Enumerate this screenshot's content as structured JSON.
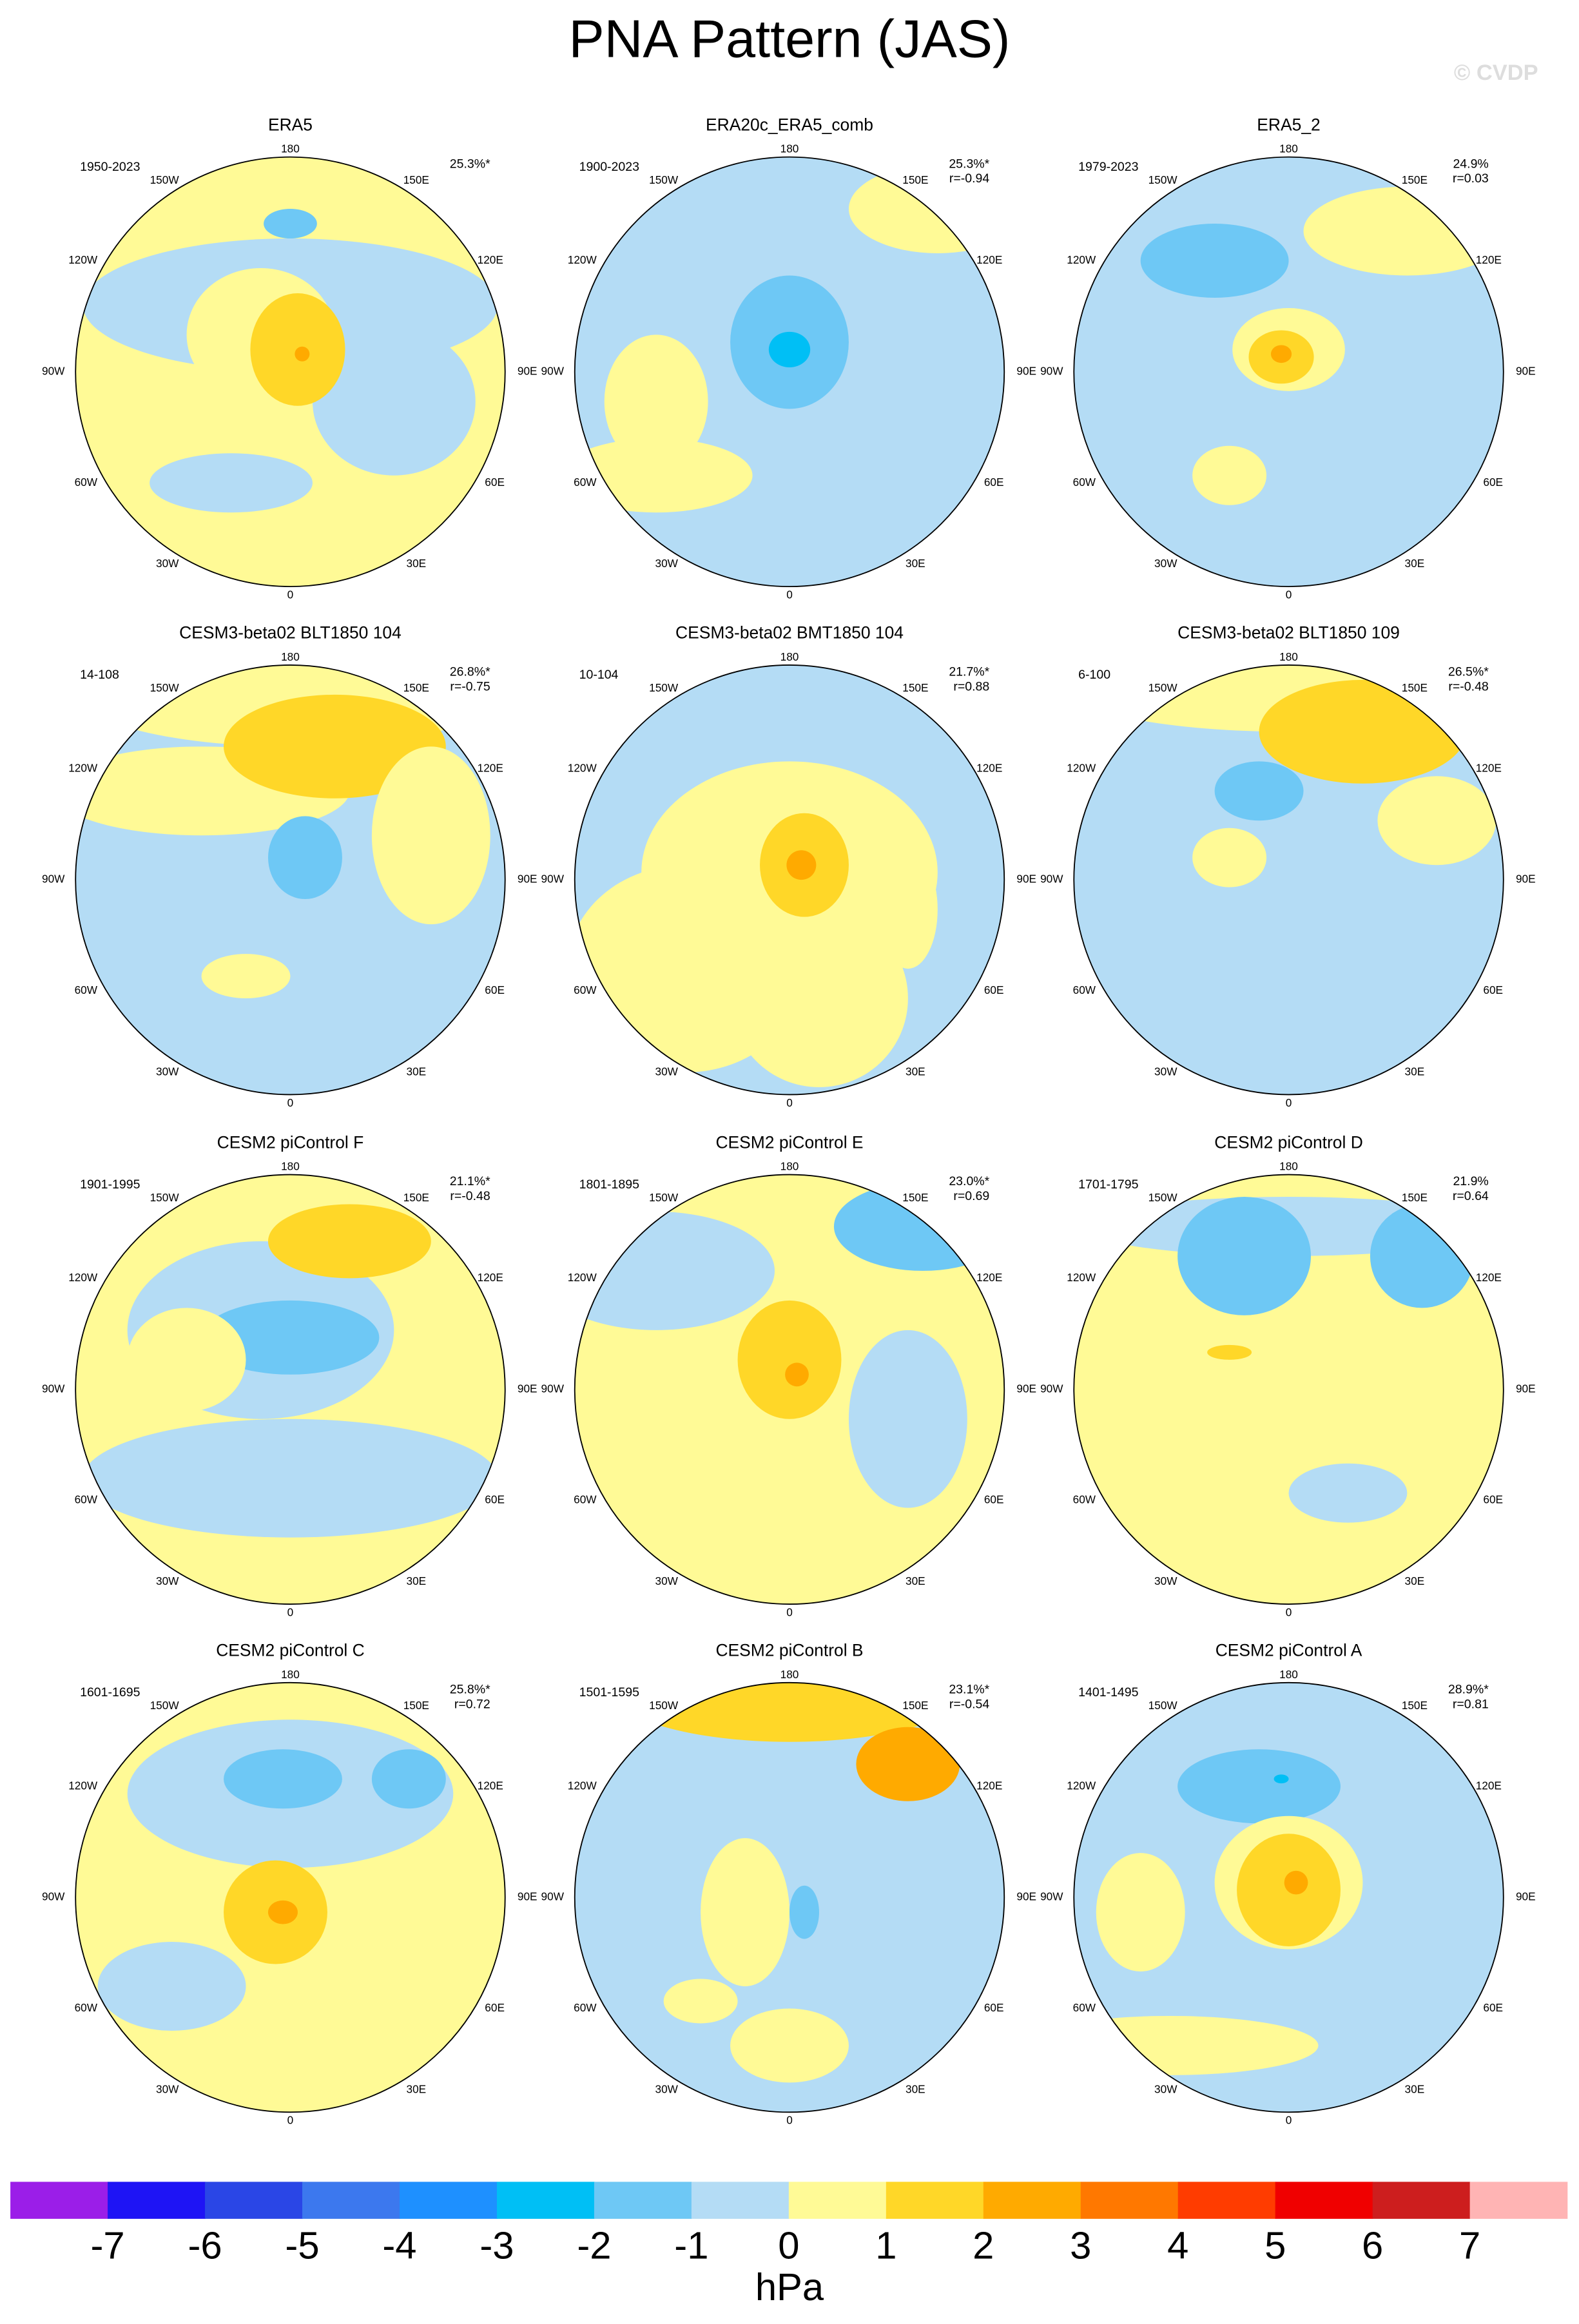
{
  "title": "PNA Pattern (JAS)",
  "watermark": "© CVDP",
  "longitude_labels": [
    "180",
    "150E",
    "120E",
    "90E",
    "60E",
    "30E",
    "0",
    "30W",
    "60W",
    "90W",
    "120W",
    "150W"
  ],
  "panels": [
    {
      "title": "ERA5",
      "period": "1950-2023",
      "pct": "25.3%*"
    },
    {
      "title": "ERA20c_ERA5_comb",
      "period": "1900-2023",
      "pct": "25.3%*",
      "r": "r=-0.94"
    },
    {
      "title": "ERA5_2",
      "period": "1979-2023",
      "pct": "24.9%",
      "r": "r=0.03"
    },
    {
      "title": "CESM3-beta02 BLT1850 104",
      "period": "14-108",
      "pct": "26.8%*",
      "r": "r=-0.75"
    },
    {
      "title": "CESM3-beta02 BMT1850 104",
      "period": "10-104",
      "pct": "21.7%*",
      "r": "r=0.88"
    },
    {
      "title": "CESM3-beta02 BLT1850 109",
      "period": "6-100",
      "pct": "26.5%*",
      "r": "r=-0.48"
    },
    {
      "title": "CESM2 piControl F",
      "period": "1901-1995",
      "pct": "21.1%*",
      "r": "r=-0.48"
    },
    {
      "title": "CESM2 piControl E",
      "period": "1801-1895",
      "pct": "23.0%*",
      "r": "r=0.69"
    },
    {
      "title": "CESM2 piControl D",
      "period": "1701-1795",
      "pct": "21.9%",
      "r": "r=0.64"
    },
    {
      "title": "CESM2 piControl C",
      "period": "1601-1695",
      "pct": "25.8%*",
      "r": "r=0.72"
    },
    {
      "title": "CESM2 piControl B",
      "period": "1501-1595",
      "pct": "23.1%*",
      "r": "r=-0.54"
    },
    {
      "title": "CESM2 piControl A",
      "period": "1401-1495",
      "pct": "28.9%*",
      "r": "r=0.81"
    }
  ],
  "colorbar": {
    "colors": [
      "#9b1ee8",
      "#1e14f5",
      "#2a46e6",
      "#3c78ee",
      "#1e90ff",
      "#00bff5",
      "#6ec8f5",
      "#b4dcf5",
      "#fffa96",
      "#ffd728",
      "#ffaa00",
      "#ff7800",
      "#ff3c00",
      "#f00000",
      "#cd1e1e",
      "#ffb4b4"
    ],
    "ticks": [
      -7,
      -6,
      -5,
      -4,
      -3,
      -2,
      -1,
      0,
      1,
      2,
      3,
      4,
      5,
      6,
      7
    ],
    "unit": "hPa"
  }
}
